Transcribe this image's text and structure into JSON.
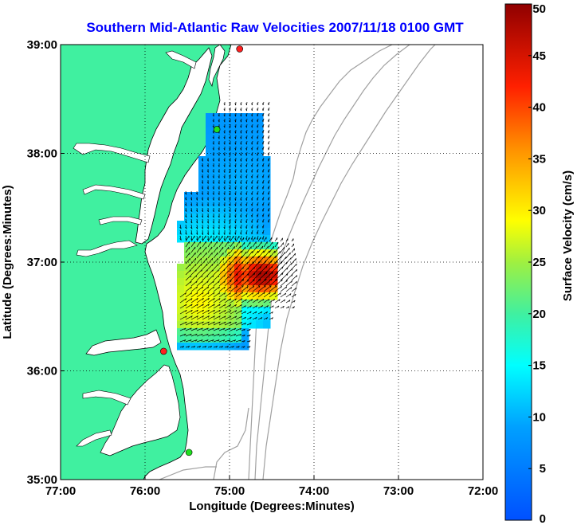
{
  "chart_data": {
    "type": "heatmap",
    "title": "Southern Mid-Atlantic Raw Velocities 2007/11/18 0100 GMT",
    "xlabel": "Longitude (Degrees:Minutes)",
    "ylabel": "Latitude (Degrees:Minutes)",
    "colorbar_label": "Surface Velocity (cm/s)",
    "xlim": [
      -77,
      -72
    ],
    "ylim": [
      35,
      39
    ],
    "x_ticks": [
      {
        "value": -77,
        "label": "77:00"
      },
      {
        "value": -76,
        "label": "76:00"
      },
      {
        "value": -75,
        "label": "75:00"
      },
      {
        "value": -74,
        "label": "74:00"
      },
      {
        "value": -73,
        "label": "73:00"
      },
      {
        "value": -72,
        "label": "72:00"
      }
    ],
    "y_ticks": [
      {
        "value": 35,
        "label": "35:00"
      },
      {
        "value": 36,
        "label": "36:00"
      },
      {
        "value": 37,
        "label": "37:00"
      },
      {
        "value": 38,
        "label": "38:00"
      },
      {
        "value": 39,
        "label": "39:00"
      }
    ],
    "colorbar_range": [
      0,
      50
    ],
    "colorbar_ticks": [
      0,
      5,
      10,
      15,
      20,
      25,
      30,
      35,
      40,
      45,
      50
    ],
    "grid": true,
    "colormap": "jet",
    "land_color": "#40f0a0",
    "bathymetry_color": "#a0a0a0",
    "station_markers": [
      {
        "lon": -74.88,
        "lat": 38.96,
        "color": "#ff2020"
      },
      {
        "lon": -75.15,
        "lat": 38.22,
        "color": "#20e020"
      },
      {
        "lon": -75.78,
        "lat": 36.18,
        "color": "#ff2020"
      },
      {
        "lon": -75.48,
        "lat": 35.25,
        "color": "#20e020"
      }
    ]
  }
}
